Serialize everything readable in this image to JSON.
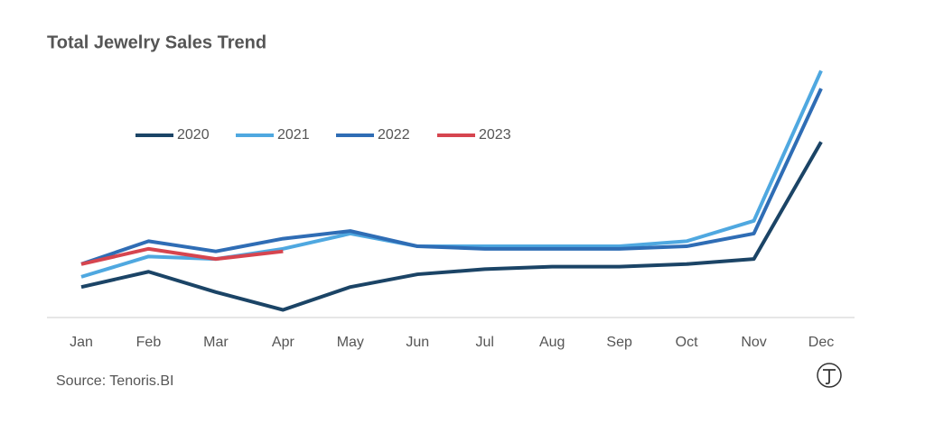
{
  "chart_data": {
    "type": "line",
    "title": "Total Jewelry Sales Trend",
    "source": "Source: Tenoris.BI",
    "categories": [
      "Jan",
      "Feb",
      "Mar",
      "Apr",
      "May",
      "Jun",
      "Jul",
      "Aug",
      "Sep",
      "Oct",
      "Nov",
      "Dec"
    ],
    "series": [
      {
        "name": "2020",
        "color": "#1b4466",
        "values": [
          12,
          18,
          10,
          3,
          12,
          17,
          19,
          20,
          20,
          21,
          23,
          69
        ]
      },
      {
        "name": "2021",
        "color": "#4fa8e0",
        "values": [
          16,
          24,
          23,
          27,
          33,
          28,
          28,
          28,
          28,
          30,
          38,
          97
        ]
      },
      {
        "name": "2022",
        "color": "#2f6db5",
        "values": [
          21,
          30,
          26,
          31,
          34,
          28,
          27,
          27,
          27,
          28,
          33,
          90
        ]
      },
      {
        "name": "2023",
        "color": "#d6454f",
        "values": [
          21,
          27,
          23,
          26,
          null,
          null,
          null,
          null,
          null,
          null,
          null,
          null
        ]
      }
    ],
    "ylim": [
      0,
      100
    ],
    "grid": false,
    "legend": "upper left"
  }
}
